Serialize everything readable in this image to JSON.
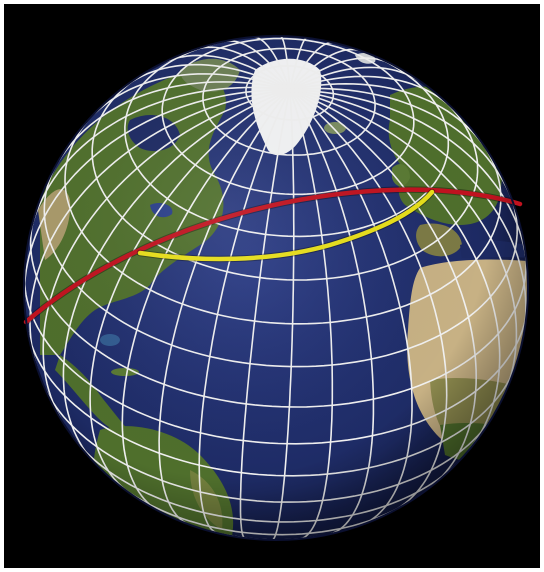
{
  "colors": {
    "background": "#000000",
    "border": "#ffffff",
    "ocean": "#1d2a63",
    "ocean_edge": "#0b1030",
    "land_green": "#4f6f2c",
    "land_desert": "#c7b184",
    "ice": "#f2f3f4",
    "graticule": "#f0f0f0",
    "great_circle_route": "#c1121f",
    "rhumb_line_route": "#e8df1a"
  },
  "routes": [
    {
      "id": "great-circle",
      "color": "#c1121f"
    },
    {
      "id": "rhumb-line",
      "color": "#e8df1a"
    }
  ]
}
